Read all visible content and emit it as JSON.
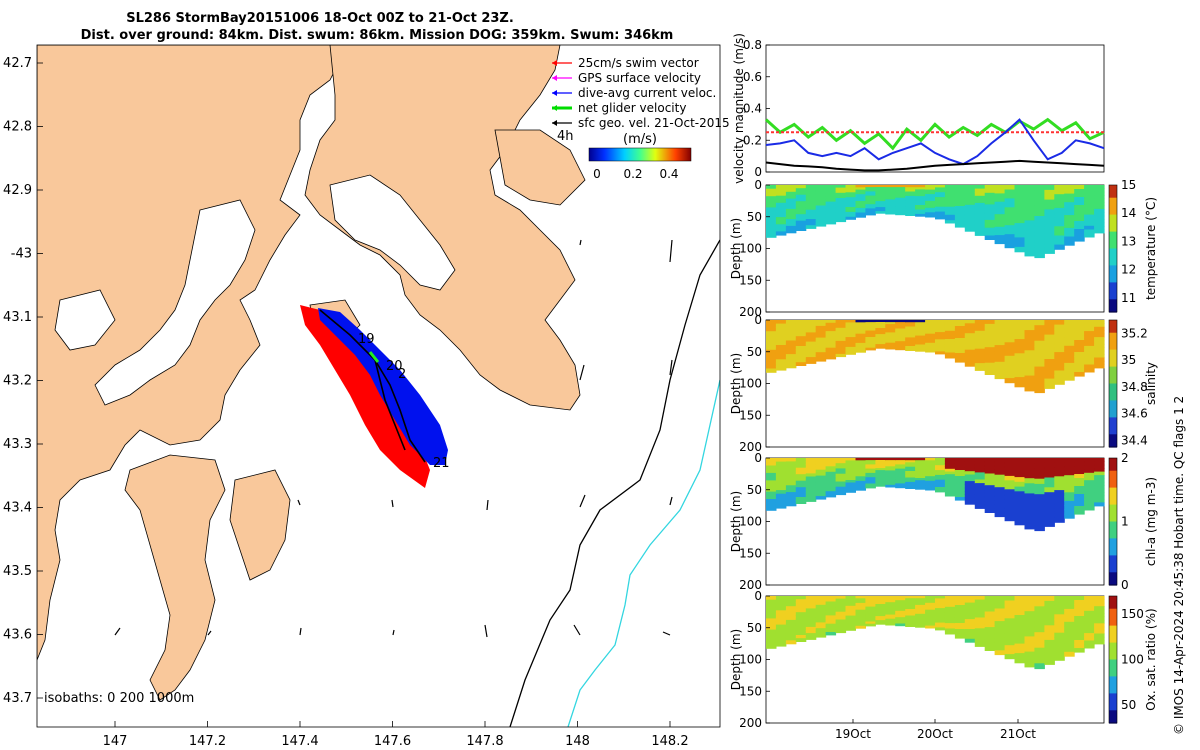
{
  "header": {
    "line1": "SL286 StormBay20151006 18-Oct 00Z to 21-Oct 23Z.",
    "line2": "Dist. over ground: 84km. Dist. swum: 86km. Mission DOG: 359km. Swum: 346km"
  },
  "map": {
    "lat_ticks": [
      "42.7",
      "42.8",
      "42.9",
      "-43",
      "43.1",
      "43.2",
      "43.3",
      "43.4",
      "43.5",
      "43.6",
      "43.7"
    ],
    "lon_ticks": [
      "147",
      "147.2",
      "147.4",
      "147.6",
      "147.8",
      "148",
      "148.2"
    ],
    "isobaths_label": "isobaths: 0   200  1000m",
    "legend": [
      {
        "label": "25cm/s swim vector",
        "color": "#ff0000"
      },
      {
        "label": "GPS surface velocity",
        "color": "#ff00ff"
      },
      {
        "label": "dive-avg current veloc.",
        "color": "#0000ff"
      },
      {
        "label": "net glider velocity",
        "color": "#00dd00"
      },
      {
        "label": "sfc geo. vel. 21-Oct-2015",
        "color": "#000000"
      }
    ],
    "age_label": "4h",
    "colorbar": {
      "title": "(m/s)",
      "ticks": [
        "0",
        "0.2",
        "0.4"
      ]
    },
    "day_labels": [
      "19",
      "20",
      "2",
      "21"
    ]
  },
  "side_text": "© IMOS 14-Apr-2024 20:45:38 Hobart time. QC flags 1  2",
  "chart_data": [
    {
      "type": "line",
      "name": "velocity",
      "ylabel": "velocity magnitude (m/s)",
      "ylim": [
        0,
        0.8
      ],
      "yticks": [
        "0",
        "0.2",
        "0.4",
        "0.6",
        "0.8"
      ],
      "x": [
        0,
        1,
        2,
        3,
        4,
        5,
        6,
        7,
        8,
        9,
        10,
        11,
        12,
        13,
        14,
        15,
        16,
        17,
        18,
        19,
        20,
        21,
        22,
        23,
        24
      ],
      "series": [
        {
          "name": "net glider velocity",
          "color": "#33dd22",
          "values": [
            0.33,
            0.25,
            0.3,
            0.22,
            0.28,
            0.2,
            0.26,
            0.18,
            0.24,
            0.15,
            0.27,
            0.2,
            0.3,
            0.22,
            0.28,
            0.23,
            0.3,
            0.25,
            0.32,
            0.27,
            0.33,
            0.26,
            0.31,
            0.21,
            0.25
          ]
        },
        {
          "name": "GPS / swim",
          "color": "#ff3333",
          "values": [
            0.25,
            0.25,
            0.25,
            0.25,
            0.25,
            0.25,
            0.25,
            0.25,
            0.25,
            0.25,
            0.25,
            0.25,
            0.25,
            0.25,
            0.25,
            0.25,
            0.25,
            0.25,
            0.25,
            0.25,
            0.25,
            0.25,
            0.25,
            0.25,
            0.25
          ]
        },
        {
          "name": "dive-avg current",
          "color": "#1a2be6",
          "values": [
            0.17,
            0.18,
            0.2,
            0.12,
            0.1,
            0.12,
            0.1,
            0.15,
            0.08,
            0.12,
            0.15,
            0.18,
            0.12,
            0.08,
            0.05,
            0.1,
            0.18,
            0.25,
            0.33,
            0.2,
            0.08,
            0.12,
            0.2,
            0.18,
            0.15
          ]
        },
        {
          "name": "sfc geo vel",
          "color": "#000000",
          "values": [
            0.06,
            0.05,
            0.04,
            0.035,
            0.03,
            0.02,
            0.015,
            0.01,
            0.01,
            0.015,
            0.02,
            0.03,
            0.04,
            0.045,
            0.05,
            0.055,
            0.06,
            0.065,
            0.07,
            0.065,
            0.06,
            0.055,
            0.05,
            0.045,
            0.04
          ]
        }
      ]
    },
    {
      "type": "heatmap",
      "name": "temperature",
      "ylabel": "Depth (m)",
      "colorbar_label": "temperature (°C)",
      "cbar_range": [
        10.5,
        15
      ],
      "cbar_ticks": [
        "15",
        "14",
        "13",
        "12",
        "11"
      ],
      "depth_ticks": [
        "0",
        "50",
        "100",
        "150",
        "200"
      ],
      "surface_value": 13.3,
      "deep_value": 12.2,
      "top_band_value": 14.6
    },
    {
      "type": "heatmap",
      "name": "salinity",
      "ylabel": "Depth (m)",
      "colorbar_label": "salinity",
      "cbar_range": [
        34.35,
        35.3
      ],
      "cbar_ticks": [
        "35.2",
        "35",
        "34.8",
        "34.6",
        "34.4"
      ],
      "depth_ticks": [
        "0",
        "50",
        "100",
        "150",
        "200"
      ],
      "surface_value": 35.05,
      "deep_value": 35.1,
      "top_band_value": 34.4
    },
    {
      "type": "heatmap",
      "name": "chl-a",
      "ylabel": "Depth (m)",
      "colorbar_label": "chl-a (mg m-3)",
      "cbar_range": [
        0,
        2
      ],
      "cbar_ticks": [
        "2",
        "1",
        "0"
      ],
      "depth_ticks": [
        "0",
        "50",
        "100",
        "150",
        "200"
      ],
      "surface_value": 1.4,
      "deep_value": 0.6,
      "top_band_value": 1.9
    },
    {
      "type": "heatmap",
      "name": "oxygen",
      "ylabel": "Depth (m)",
      "colorbar_label": "Ox. sat. ratio (%)",
      "cbar_range": [
        30,
        170
      ],
      "cbar_ticks": [
        "150",
        "100",
        "50"
      ],
      "depth_ticks": [
        "0",
        "50",
        "100",
        "150",
        "200"
      ],
      "surface_value": 120,
      "deep_value": 110,
      "top_band_value": 125,
      "xticks": [
        "19Oct",
        "20Oct",
        "21Oct"
      ]
    }
  ]
}
